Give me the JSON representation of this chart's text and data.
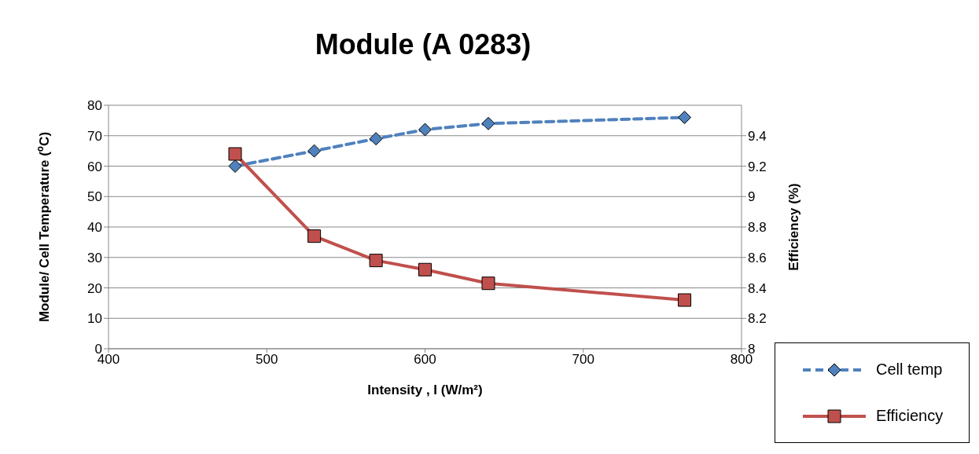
{
  "chart_data": {
    "type": "line",
    "title": "Module (A 0283)",
    "xlabel": "Intensity , I (W/m²)",
    "ylabel": "Module/ Cell Temperature ($^{o}$C)",
    "y2label": "Efficiency (%)",
    "x": [
      480,
      530,
      569,
      600,
      640,
      764
    ],
    "series": [
      {
        "name": "Cell temp",
        "color": "#4f81bd",
        "values": [
          60,
          65,
          69,
          72,
          74,
          76
        ],
        "line_style": "dashed",
        "marker": "diamond"
      },
      {
        "name": "Efficiency",
        "color": "#c0504d",
        "values": [
          9.28,
          8.74,
          8.58,
          8.52,
          8.43,
          8.32
        ],
        "axis": "y2",
        "line_style": "solid",
        "marker": "square"
      }
    ],
    "xlim": [
      400,
      800
    ],
    "xticks": [
      400,
      500,
      600,
      700,
      800
    ],
    "ylim": [
      0,
      80
    ],
    "yticks": [
      0,
      10,
      20,
      30,
      40,
      50,
      60,
      70,
      80
    ],
    "y2lim": [
      8,
      9.6
    ],
    "y2ticks": [
      8,
      8.2,
      8.4,
      8.6,
      8.8,
      9,
      9.2,
      9.4
    ],
    "grid": "y",
    "legend": "bottom right"
  }
}
